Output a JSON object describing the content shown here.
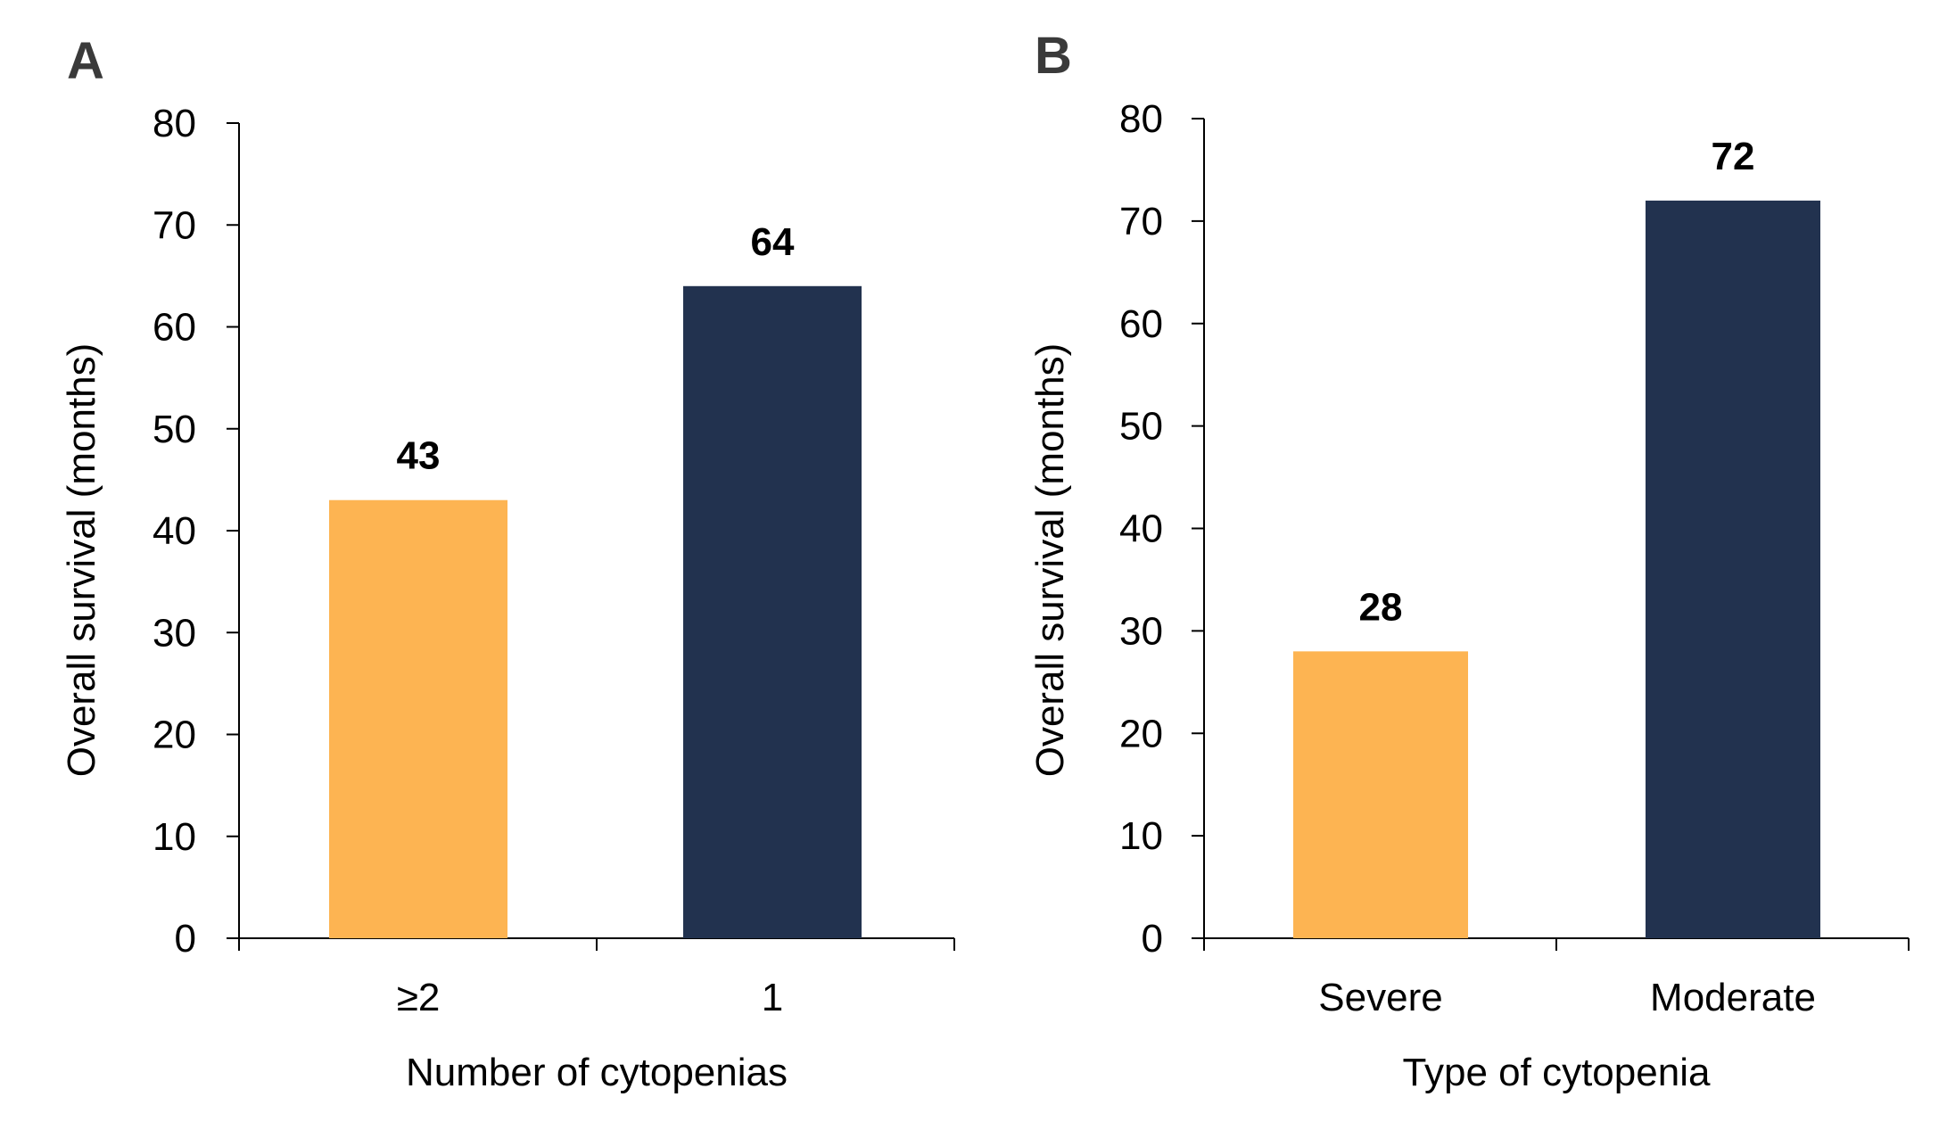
{
  "colors": {
    "bar_1": "#FDB452",
    "bar_2": "#22324F"
  },
  "chart_data": [
    {
      "panel": "A",
      "type": "bar",
      "categories": [
        "≥2",
        "1"
      ],
      "values": [
        43,
        64
      ],
      "data_labels": [
        "43",
        "64"
      ],
      "xlabel": "Number of cytopenias",
      "ylabel": "Overall survival (months)",
      "ylim": [
        0,
        80
      ],
      "yticks": [
        0,
        10,
        20,
        30,
        40,
        50,
        60,
        70,
        80
      ],
      "ytick_labels": [
        "0",
        "10",
        "20",
        "30",
        "40",
        "50",
        "60",
        "70",
        "80"
      ],
      "grid": false,
      "legend": "none"
    },
    {
      "panel": "B",
      "type": "bar",
      "categories": [
        "Severe",
        "Moderate"
      ],
      "values": [
        28,
        72
      ],
      "data_labels": [
        "28",
        "72"
      ],
      "xlabel": "Type of cytopenia",
      "ylabel": "Overall survival (months)",
      "ylim": [
        0,
        80
      ],
      "yticks": [
        0,
        10,
        20,
        30,
        40,
        50,
        60,
        70,
        80
      ],
      "ytick_labels": [
        "0",
        "10",
        "20",
        "30",
        "40",
        "50",
        "60",
        "70",
        "80"
      ],
      "grid": false,
      "legend": "none"
    }
  ]
}
